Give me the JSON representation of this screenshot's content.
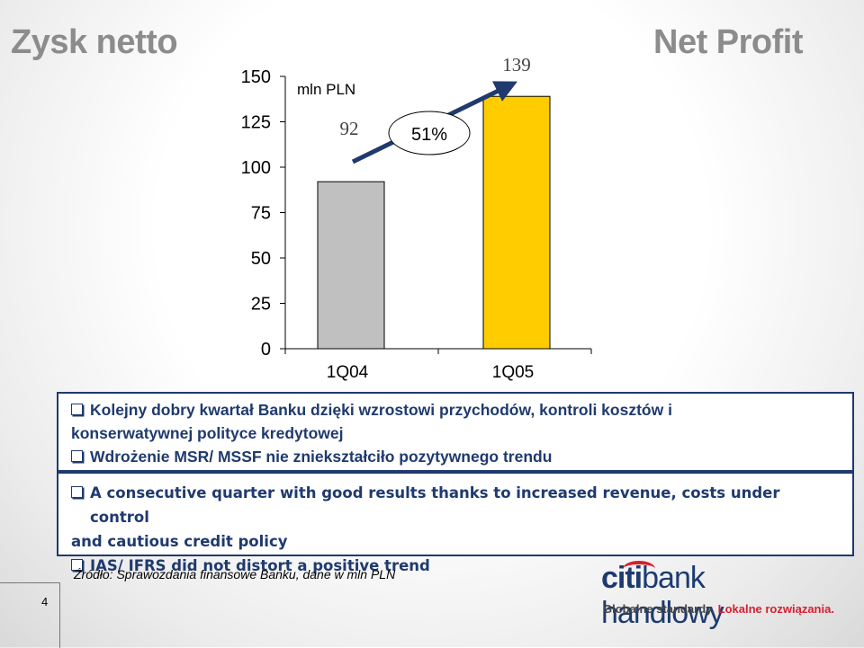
{
  "slide": {
    "title_pl": "Zysk netto",
    "title_en": "Net Profit",
    "page_number": "4",
    "source": "Źródło: Sprawozdania finansowe Banku, dane w mln PLN"
  },
  "chart_data": {
    "type": "bar",
    "categories": [
      "1Q04",
      "1Q05"
    ],
    "values": [
      92,
      139
    ],
    "value_labels": [
      "92",
      "139"
    ],
    "unit_label": "mln PLN",
    "growth_label": "51%",
    "ylim": [
      0,
      150
    ],
    "yticks": [
      "0",
      "25",
      "50",
      "75",
      "100",
      "125",
      "150"
    ],
    "grid": false,
    "colors": {
      "bar_1": "#c0c0c0",
      "bar_2": "#ffcc00",
      "arrow": "#1f3a6e"
    }
  },
  "bullets_pl": [
    {
      "line1": "Kolejny dobry kwartał Banku dzięki wzrostowi przychodów, kontroli kosztów i",
      "line2": "konserwatywnej polityce kredytowej"
    },
    {
      "line1": "Wdrożenie MSR/ MSSF nie zniekształciło pozytywnego trendu",
      "line2": ""
    }
  ],
  "bullets_en": [
    {
      "line1": "A consecutive quarter with good results thanks to increased revenue, costs under control",
      "line2": "and cautious credit policy"
    },
    {
      "line1": "IAS/ IFRS did not distort a positive trend",
      "line2": ""
    }
  ],
  "logo": {
    "brand_part1": "citi",
    "brand_part2": "bank handlowy",
    "tagline_part1": "Globalne standardy.",
    "tagline_part2": "Lokalne rozwiązania.",
    "accent_color": "#d62030",
    "brand_color": "#1d3b70"
  }
}
